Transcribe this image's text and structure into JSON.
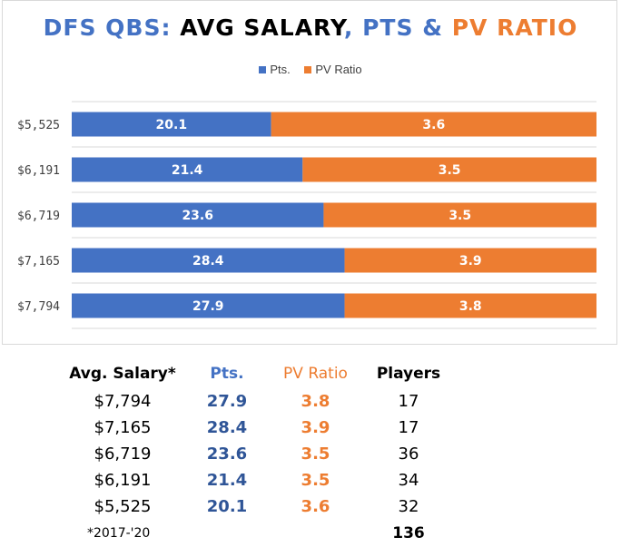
{
  "title": {
    "part1": "DFS QBS:",
    "part2": "AVG SALARY",
    "part3": ", PTS &",
    "part4": "PV RATIO"
  },
  "legend": {
    "pts": "Pts.",
    "pv": "PV Ratio"
  },
  "colors": {
    "pts": "#4472c4",
    "pv": "#ed7d31"
  },
  "chart_data": {
    "type": "bar",
    "orientation": "horizontal",
    "stacked": "100%",
    "categories": [
      "$5,525",
      "$6,191",
      "$6,719",
      "$7,165",
      "$7,794"
    ],
    "series": [
      {
        "name": "Pts.",
        "values": [
          20.1,
          21.4,
          23.6,
          28.4,
          27.9
        ],
        "data_labels": [
          "20.1",
          "21.4",
          "23.6",
          "28.4",
          "27.9"
        ]
      },
      {
        "name": "PV Ratio",
        "display_values": [
          3.6,
          3.5,
          3.5,
          3.9,
          3.8
        ],
        "share_of_bar": [
          0.62,
          0.56,
          0.52,
          0.48,
          0.48
        ]
      }
    ],
    "legend_position": "top",
    "grid": true
  },
  "table": {
    "headers": [
      "Avg. Salary*",
      "Pts.",
      "PV Ratio",
      "Players"
    ],
    "rows": [
      [
        "$7,794",
        "27.9",
        "3.8",
        "17"
      ],
      [
        "$7,165",
        "28.4",
        "3.9",
        "17"
      ],
      [
        "$6,719",
        "23.6",
        "3.5",
        "36"
      ],
      [
        "$6,191",
        "21.4",
        "3.5",
        "34"
      ],
      [
        "$5,525",
        "20.1",
        "3.6",
        "32"
      ]
    ],
    "footnote": "*2017-'20",
    "total": "136"
  }
}
